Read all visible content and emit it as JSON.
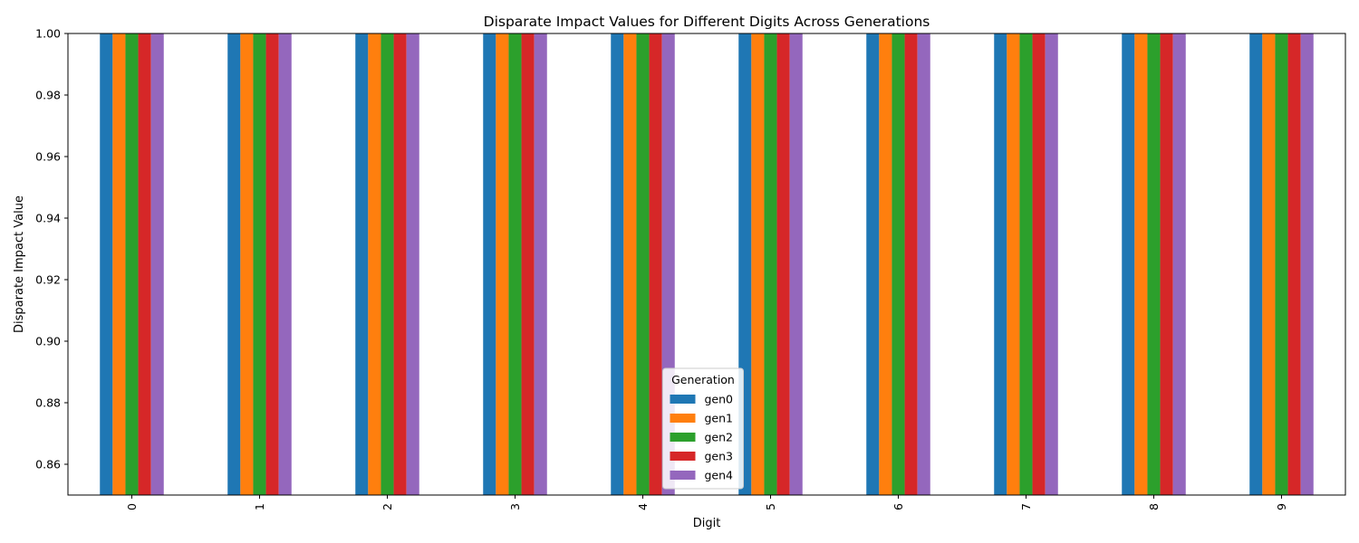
{
  "chart_data": {
    "type": "bar",
    "title": "Disparate Impact Values for Different Digits Across Generations",
    "xlabel": "Digit",
    "ylabel": "Disparate Impact Value",
    "categories": [
      "0",
      "1",
      "2",
      "3",
      "4",
      "5",
      "6",
      "7",
      "8",
      "9"
    ],
    "ylim": [
      0.85,
      1.0
    ],
    "yticks": [
      0.86,
      0.88,
      0.9,
      0.92,
      0.94,
      0.96,
      0.98,
      1.0
    ],
    "grid": false,
    "legend": {
      "title": "Generation",
      "placement": "bottom-center"
    },
    "series": [
      {
        "name": "gen0",
        "color": "#1f77b4",
        "values": [
          1.0,
          1.0,
          1.0,
          1.0,
          1.0,
          1.0,
          1.0,
          1.0,
          1.0,
          1.0
        ]
      },
      {
        "name": "gen1",
        "color": "#ff7f0e",
        "values": [
          1.0,
          1.0,
          1.0,
          1.0,
          1.0,
          1.0,
          1.0,
          1.0,
          1.0,
          1.0
        ]
      },
      {
        "name": "gen2",
        "color": "#2ca02c",
        "values": [
          1.0,
          1.0,
          1.0,
          1.0,
          1.0,
          1.0,
          1.0,
          1.0,
          1.0,
          1.0
        ]
      },
      {
        "name": "gen3",
        "color": "#d62728",
        "values": [
          1.0,
          1.0,
          1.0,
          1.0,
          1.0,
          1.0,
          1.0,
          1.0,
          1.0,
          1.0
        ]
      },
      {
        "name": "gen4",
        "color": "#9467bd",
        "values": [
          1.0,
          1.0,
          1.0,
          1.0,
          1.0,
          1.0,
          1.0,
          1.0,
          1.0,
          1.0
        ]
      }
    ]
  }
}
